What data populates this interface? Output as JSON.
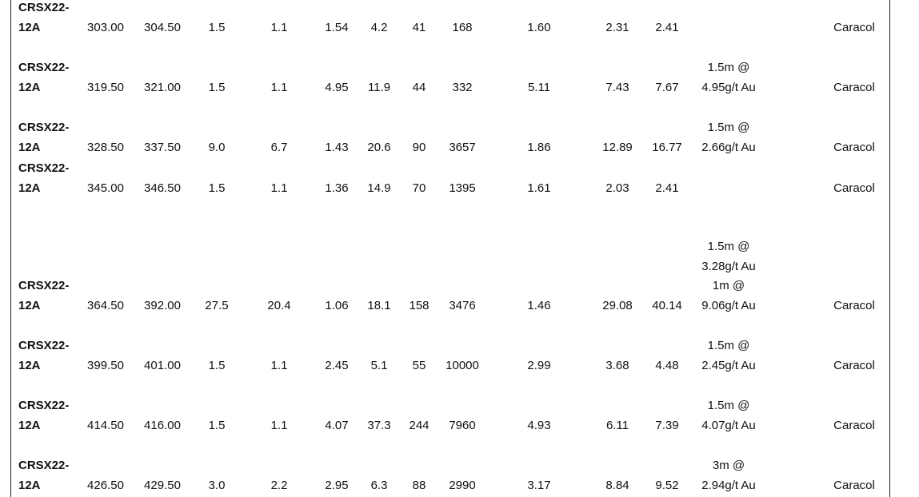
{
  "rows": [
    {
      "id": "CRSX22-12A",
      "from": "303.00",
      "to": "304.50",
      "c3": "1.5",
      "c4": "1.1",
      "c5": "1.54",
      "c6": "4.2",
      "c7": "41",
      "c8": "168",
      "c9": "1.60",
      "c10": "2.31",
      "c11": "2.41",
      "note": [],
      "area": "Caracol"
    },
    {
      "id": "CRSX22-12A",
      "from": "319.50",
      "to": "321.00",
      "c3": "1.5",
      "c4": "1.1",
      "c5": "4.95",
      "c6": "11.9",
      "c7": "44",
      "c8": "332",
      "c9": "5.11",
      "c10": "7.43",
      "c11": "7.67",
      "note": [
        "1.5m @ 4.95g/t Au"
      ],
      "area": "Caracol"
    },
    {
      "id": "CRSX22-12A",
      "from": "328.50",
      "to": "337.50",
      "c3": "9.0",
      "c4": "6.7",
      "c5": "1.43",
      "c6": "20.6",
      "c7": "90",
      "c8": "3657",
      "c9": "1.86",
      "c10": "12.89",
      "c11": "16.77",
      "note": [
        "1.5m @ 2.66g/t Au"
      ],
      "area": "Caracol"
    },
    {
      "id": "CRSX22-12A",
      "from": "345.00",
      "to": "346.50",
      "c3": "1.5",
      "c4": "1.1",
      "c5": "1.36",
      "c6": "14.9",
      "c7": "70",
      "c8": "1395",
      "c9": "1.61",
      "c10": "2.03",
      "c11": "2.41",
      "note": [],
      "area": "Caracol"
    },
    {
      "id": "CRSX22-12A",
      "from": "364.50",
      "to": "392.00",
      "c3": "27.5",
      "c4": "20.4",
      "c5": "1.06",
      "c6": "18.1",
      "c7": "158",
      "c8": "3476",
      "c9": "1.46",
      "c10": "29.08",
      "c11": "40.14",
      "note": [
        "1.5m @ 3.28g/t Au",
        "1m @ 9.06g/t Au"
      ],
      "area": "Caracol"
    },
    {
      "id": "CRSX22-12A",
      "from": "399.50",
      "to": "401.00",
      "c3": "1.5",
      "c4": "1.1",
      "c5": "2.45",
      "c6": "5.1",
      "c7": "55",
      "c8": "10000",
      "c9": "2.99",
      "c10": "3.68",
      "c11": "4.48",
      "note": [
        "1.5m @ 2.45g/t Au"
      ],
      "area": "Caracol"
    },
    {
      "id": "CRSX22-12A",
      "from": "414.50",
      "to": "416.00",
      "c3": "1.5",
      "c4": "1.1",
      "c5": "4.07",
      "c6": "37.3",
      "c7": "244",
      "c8": "7960",
      "c9": "4.93",
      "c10": "6.11",
      "c11": "7.39",
      "note": [
        "1.5m @ 4.07g/t Au"
      ],
      "area": "Caracol"
    },
    {
      "id": "CRSX22-12A",
      "from": "426.50",
      "to": "429.50",
      "c3": "3.0",
      "c4": "2.2",
      "c5": "2.95",
      "c6": "6.3",
      "c7": "88",
      "c8": "2990",
      "c9": "3.17",
      "c10": "8.84",
      "c11": "9.52",
      "note": [
        "3m @ 2.94g/t Au"
      ],
      "area": "Caracol"
    }
  ]
}
